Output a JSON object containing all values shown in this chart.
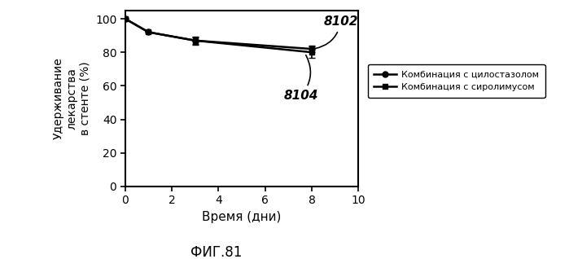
{
  "title": "ФИГ.81",
  "xlabel": "Время (дни)",
  "ylabel": "Удерживание\nлекарства\nв стенте (%)",
  "xlim": [
    0,
    10
  ],
  "ylim": [
    0,
    105
  ],
  "yticks": [
    0,
    20,
    40,
    60,
    80,
    100
  ],
  "xticks": [
    0,
    2,
    4,
    6,
    8,
    10
  ],
  "series": [
    {
      "label": "Комбинация с цилостазолом",
      "name": "8102",
      "x": [
        0,
        1,
        3,
        8
      ],
      "y": [
        100,
        92,
        87,
        82
      ],
      "yerr": [
        null,
        null,
        2.5,
        2.0
      ],
      "marker": "o",
      "color": "#000000",
      "linewidth": 1.8,
      "markersize": 5
    },
    {
      "label": "Комбинация с сиролимусом",
      "name": "8104",
      "x": [
        0,
        1,
        3,
        8
      ],
      "y": [
        100,
        92,
        87,
        80
      ],
      "yerr": [
        null,
        null,
        2.0,
        3.5
      ],
      "marker": "s",
      "color": "#000000",
      "linewidth": 1.8,
      "markersize": 5
    }
  ],
  "background_color": "#ffffff",
  "figure_width": 6.99,
  "figure_height": 3.18,
  "dpi": 100
}
